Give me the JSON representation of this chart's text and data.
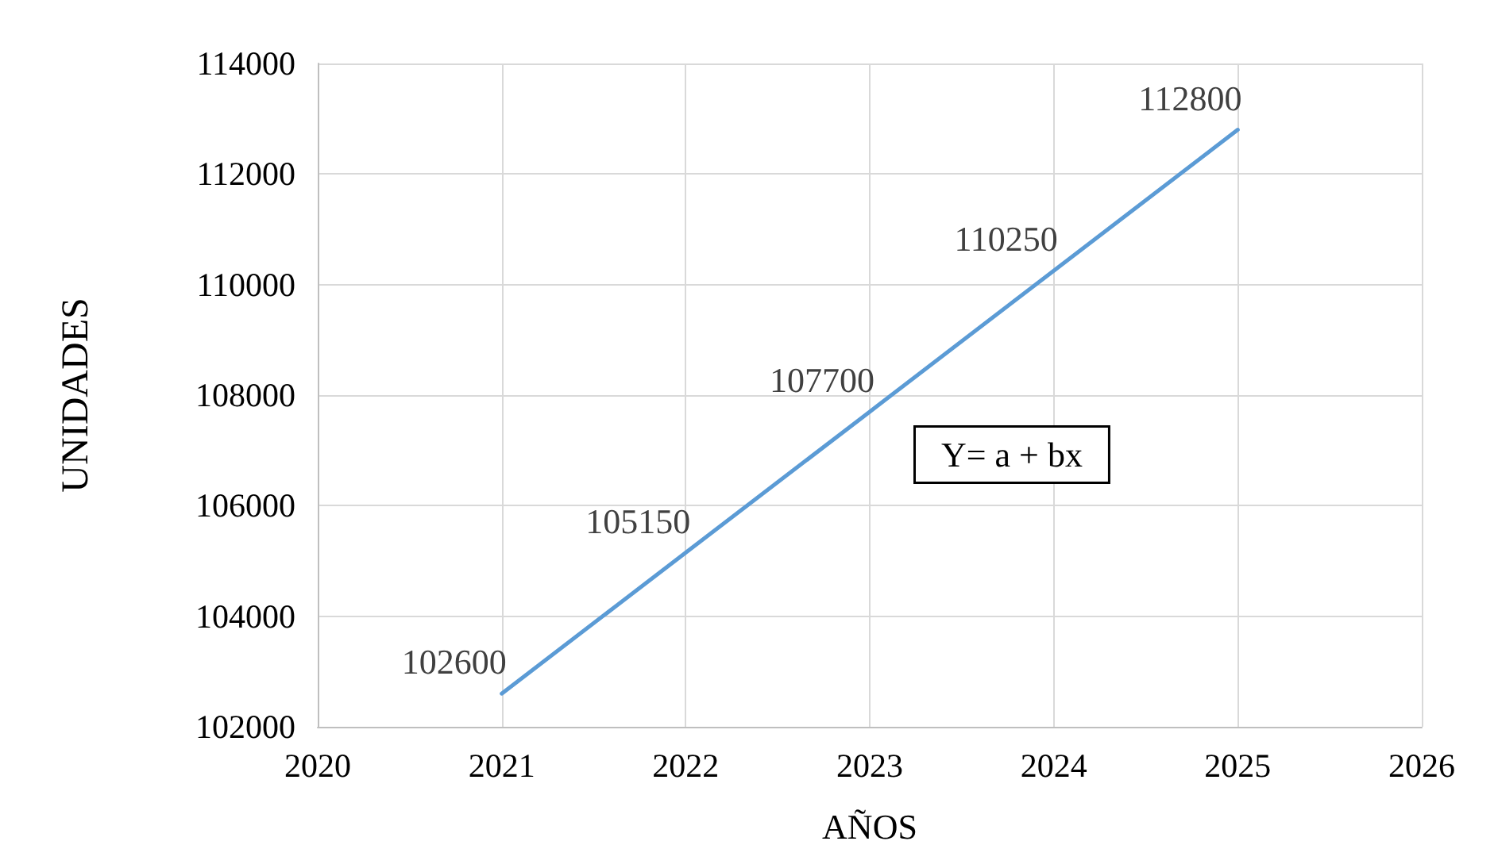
{
  "chart_data": {
    "type": "line",
    "xlabel": "AÑOS",
    "ylabel": "UNIDADES",
    "x": [
      2021,
      2022,
      2023,
      2024,
      2025
    ],
    "series": [
      {
        "color": "#5b9bd5",
        "values": [
          102600,
          105150,
          107700,
          110250,
          112800
        ]
      }
    ],
    "xlim": [
      2020,
      2026
    ],
    "xticks": [
      2020,
      2021,
      2022,
      2023,
      2024,
      2025,
      2026
    ],
    "ylim": [
      102000,
      114000
    ],
    "yticks": [
      102000,
      104000,
      106000,
      108000,
      110000,
      112000,
      114000
    ],
    "grid": true,
    "marker": "none",
    "line_style": "solid",
    "data_labels": true,
    "annotations": [
      "Y= a + bx"
    ]
  }
}
